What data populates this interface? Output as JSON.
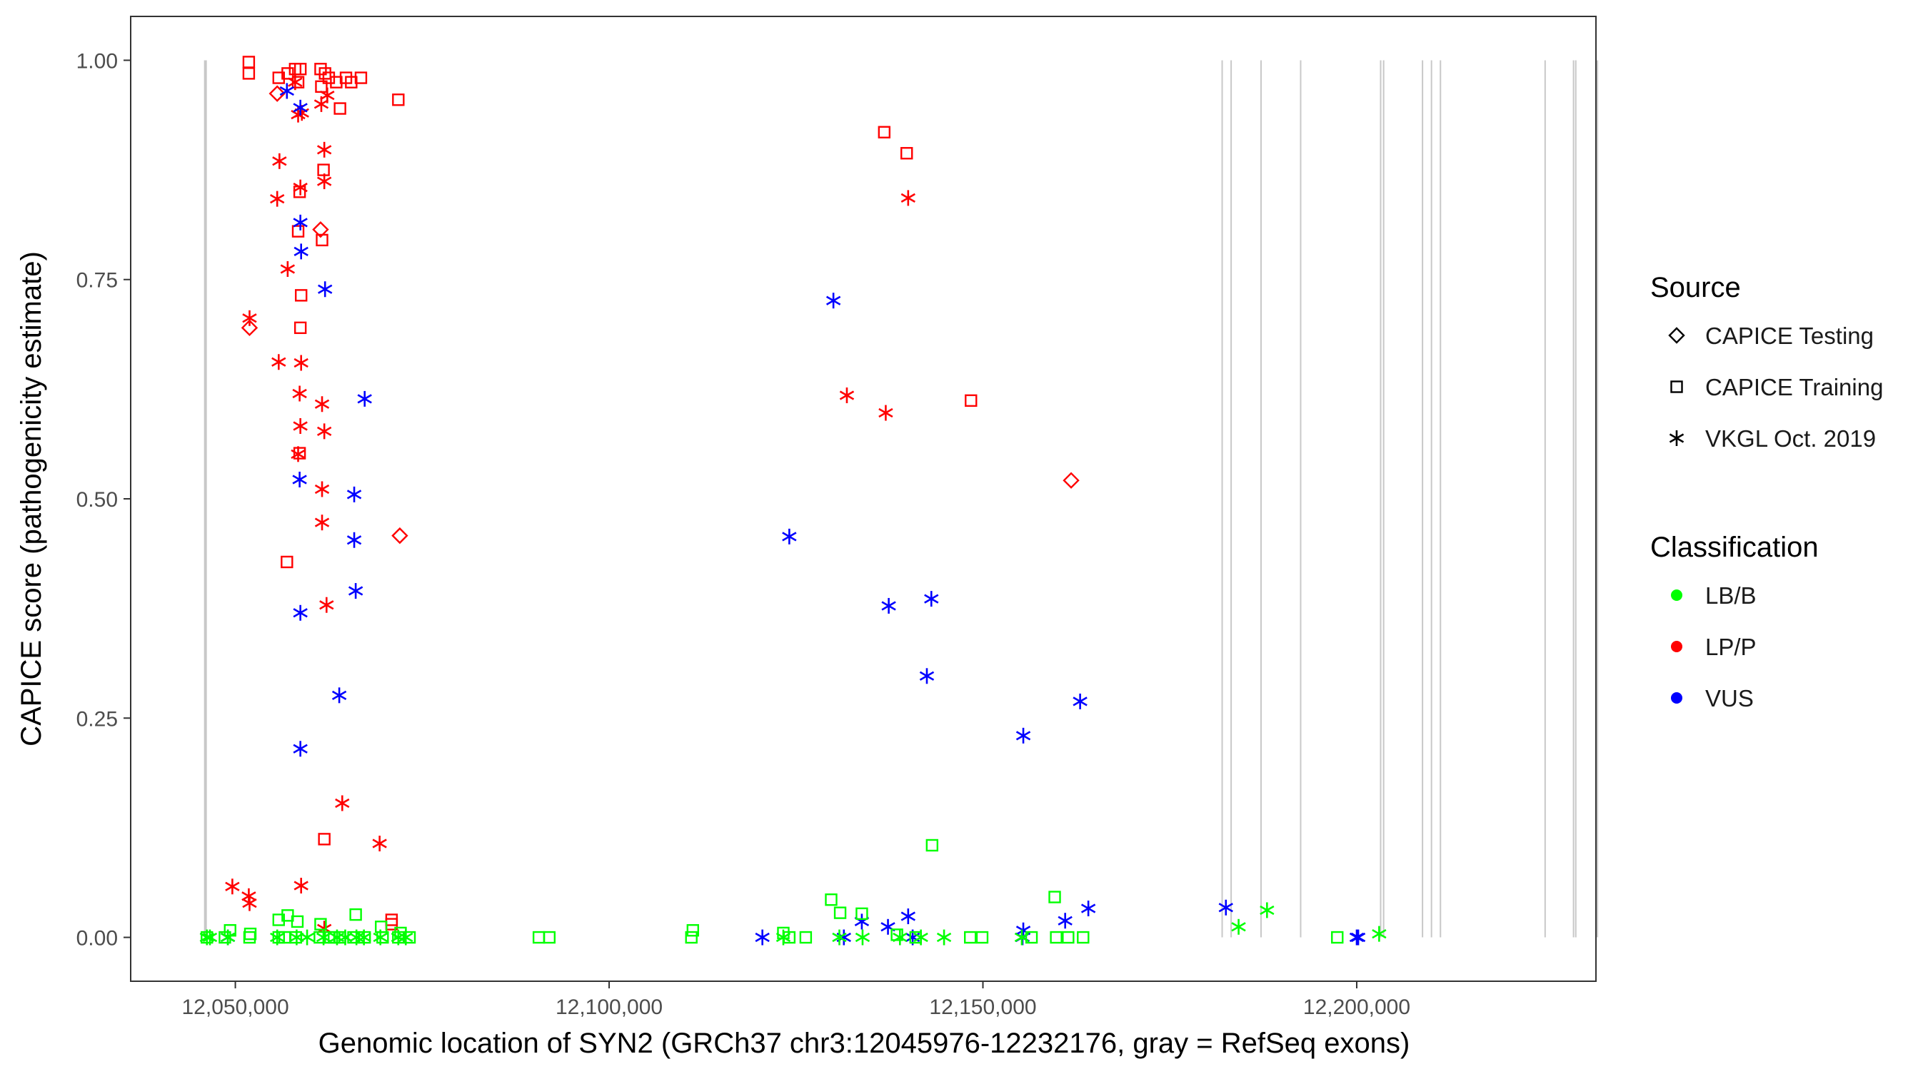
{
  "chart_data": {
    "type": "scatter",
    "xlabel": "Genomic location of SYN2 (GRCh37 chr3:12045976-12232176, gray = RefSeq exons)",
    "ylabel": "CAPICE score (pathogenicity estimate)",
    "xlim": [
      12036000,
      12232000
    ],
    "ylim": [
      -0.05,
      1.05
    ],
    "x_ticks": [
      12050000,
      12100000,
      12150000,
      12200000
    ],
    "x_tick_labels": [
      "12,050,000",
      "12,100,000",
      "12,150,000",
      "12,200,000"
    ],
    "y_ticks": [
      0,
      0.25,
      0.5,
      0.75,
      1.0
    ],
    "y_tick_labels": [
      "0.00",
      "0.25",
      "0.50",
      "0.75",
      "1.00"
    ],
    "grid": false,
    "legend_placement": "right",
    "exons": [
      12046000,
      12182000,
      12183200,
      12187200,
      12192500,
      12203200,
      12203600,
      12208800,
      12210000,
      12211200,
      12225200,
      12229000,
      12229300,
      12232200
    ],
    "exon_color": "#c8c8c8",
    "legends": [
      {
        "title": "Source",
        "entries": [
          {
            "label": "CAPICE Testing",
            "shape": "diamond"
          },
          {
            "label": "CAPICE Training",
            "shape": "square"
          },
          {
            "label": "VKGL Oct. 2019",
            "shape": "asterisk"
          }
        ]
      },
      {
        "title": "Classification",
        "entries": [
          {
            "label": "LB/B",
            "color": "#00ff00"
          },
          {
            "label": "LP/P",
            "color": "#ff0000"
          },
          {
            "label": "VUS",
            "color": "#0000ff"
          }
        ]
      }
    ],
    "series": [
      {
        "source": "CAPICE Training",
        "classification": "LP/P",
        "shape": "square",
        "color": "#ff0000",
        "x": [
          12051800,
          12051800,
          12055800,
          12057000,
          12058000,
          12058400,
          12058700,
          12061400,
          12062000,
          12062500,
          12063500,
          12064800,
          12065500,
          12066800,
          12061500,
          12064000,
          12071800,
          12061800,
          12058600,
          12058400,
          12061600,
          12058800,
          12058700,
          12058600,
          12056900,
          12061900,
          12070900,
          12070900,
          12136800,
          12139800,
          12148400
        ],
        "y": [
          0.998,
          0.985,
          0.98,
          0.985,
          0.99,
          0.975,
          0.99,
          0.99,
          0.985,
          0.98,
          0.975,
          0.98,
          0.975,
          0.98,
          0.97,
          0.945,
          0.955,
          0.875,
          0.85,
          0.805,
          0.795,
          0.732,
          0.695,
          0.552,
          0.428,
          0.112,
          0.02,
          0.015,
          0.918,
          0.894,
          0.612
        ]
      },
      {
        "source": "CAPICE Testing",
        "classification": "LP/P",
        "shape": "diamond",
        "color": "#ff0000",
        "x": [
          12055600,
          12061400,
          12051900,
          12072000,
          12161800
        ],
        "y": [
          0.962,
          0.807,
          0.695,
          0.458,
          0.521
        ]
      },
      {
        "source": "VKGL Oct. 2019",
        "classification": "LP/P",
        "shape": "asterisk",
        "color": "#ff0000",
        "x": [
          12058000,
          12058900,
          12062300,
          12061500,
          12058400,
          12055900,
          12061900,
          12055600,
          12061900,
          12058700,
          12057000,
          12051900,
          12055800,
          12058800,
          12058600,
          12061600,
          12058700,
          12061900,
          12058400,
          12061600,
          12061600,
          12062200,
          12064300,
          12069300,
          12049600,
          12051800,
          12051900,
          12058800,
          12061900,
          12140000,
          12131800,
          12137000
        ],
        "y": [
          0.975,
          0.94,
          0.96,
          0.95,
          0.938,
          0.885,
          0.898,
          0.842,
          0.862,
          0.855,
          0.762,
          0.706,
          0.656,
          0.655,
          0.62,
          0.608,
          0.583,
          0.577,
          0.551,
          0.511,
          0.473,
          0.379,
          0.153,
          0.107,
          0.058,
          0.047,
          0.039,
          0.059,
          0.01,
          0.843,
          0.618,
          0.598
        ]
      },
      {
        "source": "VKGL Oct. 2019",
        "classification": "VUS",
        "shape": "asterisk",
        "color": "#0000ff",
        "x": [
          12056900,
          12058700,
          12058700,
          12058800,
          12062000,
          12067300,
          12058600,
          12065900,
          12065900,
          12066100,
          12058700,
          12063900,
          12058700,
          12049000,
          12130000,
          12124100,
          12137400,
          12143100,
          12142500,
          12155400,
          12163000,
          12133800,
          12140000,
          12137300,
          12164100,
          12161000,
          12155400,
          12182500,
          12200200,
          12120500,
          12131400,
          12140600,
          12155300,
          12200000
        ],
        "y": [
          0.965,
          0.946,
          0.815,
          0.782,
          0.739,
          0.614,
          0.522,
          0.505,
          0.453,
          0.395,
          0.37,
          0.276,
          0.215,
          0.0,
          0.726,
          0.457,
          0.378,
          0.386,
          0.298,
          0.23,
          0.269,
          0.018,
          0.024,
          0.012,
          0.033,
          0.019,
          0.008,
          0.034,
          0.0,
          0.0,
          0.0,
          0.0,
          0.0,
          0.0
        ]
      },
      {
        "source": "CAPICE Training",
        "classification": "LB/B",
        "shape": "square",
        "color": "#00ff00",
        "x": [
          12049300,
          12052000,
          12055800,
          12057000,
          12058300,
          12061400,
          12064000,
          12066100,
          12069500,
          12072100,
          12046200,
          12048600,
          12051900,
          12055800,
          12056600,
          12058100,
          12061300,
          12062500,
          12063200,
          12065800,
          12067300,
          12069700,
          12071800,
          12073300,
          12090600,
          12092000,
          12111200,
          12111000,
          12123300,
          12124100,
          12126300,
          12129700,
          12130900,
          12133800,
          12138500,
          12143200,
          12141000,
          12148300,
          12149900,
          12156500,
          12159600,
          12159800,
          12161400,
          12163400,
          12197400
        ],
        "y": [
          0.008,
          0.004,
          0.02,
          0.025,
          0.018,
          0.015,
          0.0,
          0.026,
          0.012,
          0.005,
          0.0,
          0.0,
          0.0,
          0.0,
          0.0,
          0.0,
          0.0,
          0.0,
          0.0,
          0.0,
          0.0,
          0.0,
          0.0,
          0.0,
          0.0,
          0.0,
          0.008,
          0.0,
          0.005,
          0.0,
          0.0,
          0.043,
          0.028,
          0.027,
          0.003,
          0.105,
          0.0,
          0.0,
          0.0,
          0.0,
          0.046,
          0.0,
          0.0,
          0.0,
          0.0
        ]
      },
      {
        "source": "VKGL Oct. 2019",
        "classification": "LB/B",
        "shape": "asterisk",
        "color": "#00ff00",
        "x": [
          12046200,
          12046600,
          12049000,
          12055600,
          12058200,
          12059600,
          12061800,
          12063600,
          12064700,
          12066200,
          12067200,
          12069400,
          12071800,
          12072800,
          12123300,
          12130800,
          12133900,
          12138900,
          12141700,
          12144800,
          12155200,
          12184200,
          12188000,
          12203000
        ],
        "y": [
          0.0,
          0.0,
          0.0,
          0.0,
          0.0,
          0.0,
          0.0,
          0.0,
          0.0,
          0.0,
          0.0,
          0.0,
          0.0,
          0.0,
          0.0,
          0.0,
          0.0,
          0.0,
          0.0,
          0.0,
          0.0,
          0.012,
          0.031,
          0.004
        ]
      }
    ]
  }
}
